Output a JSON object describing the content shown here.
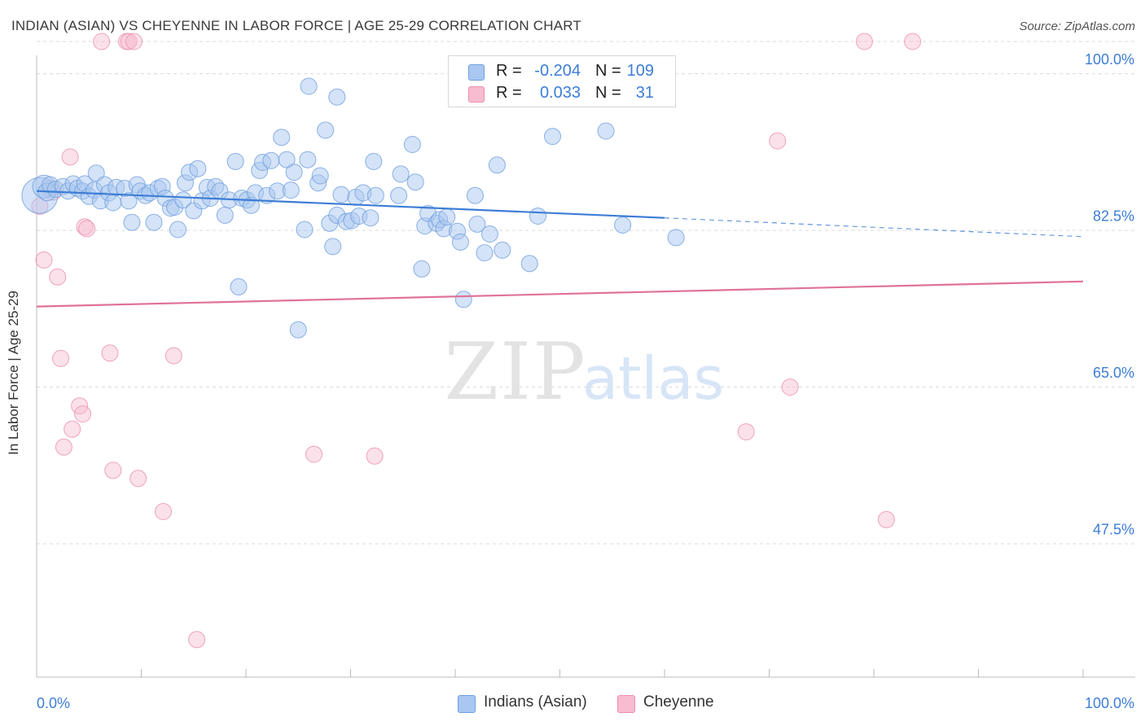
{
  "title": "INDIAN (ASIAN) VS CHEYENNE IN LABOR FORCE | AGE 25-29 CORRELATION CHART",
  "source": "Source: ZipAtlas.com",
  "watermark": {
    "zip": "ZIP",
    "atlas": "atlas"
  },
  "legend_top": {
    "rows": [
      {
        "r_label": "R =",
        "r_value": "-0.204",
        "n_label": "N =",
        "n_value": "109"
      },
      {
        "r_label": "R =",
        "r_value": "0.033",
        "n_label": "N =",
        "n_value": "31"
      }
    ]
  },
  "legend_bottom": {
    "items": [
      {
        "label": "Indians (Asian)"
      },
      {
        "label": "Cheyenne"
      }
    ]
  },
  "chart_data": {
    "type": "scatter",
    "title": "INDIAN (ASIAN) VS CHEYENNE IN LABOR FORCE | AGE 25-29 CORRELATION CHART",
    "ylabel": "In Labor Force | Age 25-29",
    "xlabel": "",
    "xlim": [
      0,
      100
    ],
    "ylim": [
      31,
      103
    ],
    "x_tick_labels": [
      "0.0%",
      "100.0%"
    ],
    "y_ticks": [
      {
        "value": 100,
        "label": "100.0%"
      },
      {
        "value": 82.5,
        "label": "82.5%"
      },
      {
        "value": 65,
        "label": "65.0%"
      },
      {
        "value": 47.5,
        "label": "47.5%"
      }
    ],
    "grid": "horizontal dashed",
    "colors": {
      "series1_fill": "#a9c7f0",
      "series1_stroke": "#6f9fdf",
      "series1_line": "#3d7dd6",
      "series2_fill": "#f7bcd0",
      "series2_stroke": "#ec8fae",
      "series2_line": "#e0729a",
      "axis_label_blue": "#3d7dd6",
      "grid": "#d9d9d9"
    },
    "series": [
      {
        "name": "Indians (Asian)",
        "trend": {
          "x_start": 0,
          "y_start": 85.3,
          "x_solid_end": 60,
          "y_solid_end": 82.3,
          "x_dash_end": 100,
          "y_dash_end": 80.2
        },
        "points": [
          [
            0.3,
            84.8,
            22
          ],
          [
            0.7,
            85.8,
            14
          ],
          [
            1.0,
            85.2,
            11
          ],
          [
            1.3,
            86.0,
            10
          ],
          [
            1.8,
            85.5,
            10
          ],
          [
            2.5,
            85.8,
            10
          ],
          [
            3.0,
            85.3,
            10
          ],
          [
            3.5,
            86.1,
            10
          ],
          [
            3.9,
            85.6,
            10
          ],
          [
            4.4,
            85.3,
            10
          ],
          [
            4.6,
            86.1,
            10
          ],
          [
            5.0,
            84.7,
            10
          ],
          [
            5.5,
            85.4,
            10
          ],
          [
            5.7,
            87.3,
            10
          ],
          [
            6.1,
            84.2,
            10
          ],
          [
            6.5,
            86.0,
            10
          ],
          [
            6.9,
            85.1,
            10
          ],
          [
            7.3,
            84.0,
            10
          ],
          [
            7.6,
            85.7,
            10
          ],
          [
            8.4,
            85.6,
            10
          ],
          [
            8.8,
            84.2,
            10
          ],
          [
            9.1,
            81.8,
            10
          ],
          [
            9.6,
            86.0,
            10
          ],
          [
            9.9,
            85.3,
            10
          ],
          [
            10.4,
            84.8,
            10
          ],
          [
            10.8,
            85.1,
            10
          ],
          [
            11.2,
            81.8,
            10
          ],
          [
            11.6,
            85.6,
            10
          ],
          [
            12.0,
            85.8,
            10
          ],
          [
            12.3,
            84.5,
            10
          ],
          [
            12.8,
            83.4,
            10
          ],
          [
            13.2,
            83.5,
            10
          ],
          [
            13.5,
            81.0,
            10
          ],
          [
            14.0,
            84.3,
            10
          ],
          [
            14.2,
            86.2,
            10
          ],
          [
            14.6,
            87.4,
            10
          ],
          [
            15.0,
            83.1,
            10
          ],
          [
            15.4,
            87.8,
            10
          ],
          [
            15.8,
            84.2,
            10
          ],
          [
            16.3,
            85.7,
            10
          ],
          [
            16.6,
            84.5,
            10
          ],
          [
            17.1,
            85.8,
            10
          ],
          [
            17.5,
            85.3,
            10
          ],
          [
            18.0,
            82.6,
            10
          ],
          [
            18.4,
            84.3,
            10
          ],
          [
            19.0,
            88.6,
            10
          ],
          [
            19.3,
            74.6,
            10
          ],
          [
            19.6,
            84.5,
            10
          ],
          [
            20.1,
            84.3,
            10
          ],
          [
            20.5,
            83.7,
            10
          ],
          [
            20.9,
            85.1,
            10
          ],
          [
            21.3,
            87.6,
            10
          ],
          [
            21.6,
            88.5,
            10
          ],
          [
            22.0,
            84.8,
            10
          ],
          [
            22.4,
            88.7,
            10
          ],
          [
            23.0,
            85.3,
            10
          ],
          [
            23.4,
            91.3,
            10
          ],
          [
            23.9,
            88.8,
            10
          ],
          [
            24.3,
            85.4,
            10
          ],
          [
            24.6,
            87.4,
            10
          ],
          [
            25.0,
            69.8,
            10
          ],
          [
            25.6,
            81.0,
            10
          ],
          [
            25.9,
            88.8,
            10
          ],
          [
            26.9,
            86.2,
            10
          ],
          [
            27.1,
            87.0,
            10
          ],
          [
            27.6,
            92.1,
            10
          ],
          [
            28.0,
            81.7,
            10
          ],
          [
            28.3,
            79.1,
            10
          ],
          [
            28.7,
            82.6,
            10
          ],
          [
            29.1,
            84.9,
            10
          ],
          [
            29.6,
            81.9,
            10
          ],
          [
            30.1,
            82.0,
            10
          ],
          [
            30.5,
            84.6,
            10
          ],
          [
            30.8,
            82.5,
            10
          ],
          [
            31.2,
            85.1,
            10
          ],
          [
            31.9,
            82.3,
            10
          ],
          [
            32.2,
            88.6,
            10
          ],
          [
            32.4,
            84.8,
            10
          ],
          [
            26.0,
            97.0,
            10
          ],
          [
            28.7,
            95.8,
            10
          ],
          [
            35.9,
            90.5,
            10
          ],
          [
            34.8,
            87.2,
            10
          ],
          [
            34.6,
            84.8,
            10
          ],
          [
            36.2,
            86.3,
            10
          ],
          [
            36.8,
            76.6,
            10
          ],
          [
            37.1,
            81.4,
            10
          ],
          [
            37.4,
            82.8,
            10
          ],
          [
            38.2,
            81.7,
            10
          ],
          [
            38.5,
            82.1,
            10
          ],
          [
            38.9,
            81.1,
            10
          ],
          [
            39.2,
            82.4,
            10
          ],
          [
            40.2,
            80.8,
            10
          ],
          [
            40.5,
            79.6,
            10
          ],
          [
            40.8,
            73.2,
            10
          ],
          [
            41.9,
            84.8,
            10
          ],
          [
            42.1,
            81.6,
            10
          ],
          [
            42.8,
            78.4,
            10
          ],
          [
            43.3,
            80.5,
            10
          ],
          [
            44.0,
            88.2,
            10
          ],
          [
            44.5,
            78.7,
            10
          ],
          [
            47.1,
            77.2,
            10
          ],
          [
            47.9,
            82.5,
            10
          ],
          [
            49.3,
            91.4,
            10
          ],
          [
            54.4,
            92.0,
            10
          ],
          [
            56.0,
            81.5,
            10
          ],
          [
            61.1,
            80.1,
            10
          ]
        ]
      },
      {
        "name": "Cheyenne",
        "trend": {
          "x_start": 0,
          "y_start": 72.4,
          "x_end": 100,
          "y_end": 75.2
        },
        "points": [
          [
            0.3,
            83.6,
            10
          ],
          [
            0.7,
            77.6,
            10
          ],
          [
            1.3,
            85.6,
            10
          ],
          [
            1.6,
            85.2,
            10
          ],
          [
            2.0,
            75.7,
            10
          ],
          [
            2.3,
            66.6,
            10
          ],
          [
            2.6,
            56.7,
            10
          ],
          [
            3.2,
            89.1,
            10
          ],
          [
            3.4,
            58.7,
            10
          ],
          [
            4.1,
            61.3,
            10
          ],
          [
            4.4,
            60.4,
            10
          ],
          [
            4.6,
            81.3,
            10
          ],
          [
            4.8,
            81.1,
            10
          ],
          [
            6.2,
            102.0,
            10
          ],
          [
            7.0,
            67.2,
            10
          ],
          [
            7.3,
            54.1,
            10
          ],
          [
            8.6,
            102.0,
            10
          ],
          [
            8.8,
            102.0,
            10
          ],
          [
            9.3,
            102.0,
            10
          ],
          [
            9.7,
            53.2,
            10
          ],
          [
            12.1,
            49.5,
            10
          ],
          [
            13.1,
            66.9,
            10
          ],
          [
            15.3,
            35.2,
            10
          ],
          [
            26.5,
            55.9,
            10
          ],
          [
            32.3,
            55.7,
            10
          ],
          [
            67.8,
            58.4,
            10
          ],
          [
            70.8,
            90.9,
            10
          ],
          [
            72.0,
            63.4,
            10
          ],
          [
            79.1,
            102.0,
            10
          ],
          [
            81.2,
            48.6,
            10
          ],
          [
            83.7,
            102.0,
            10
          ]
        ]
      }
    ]
  }
}
